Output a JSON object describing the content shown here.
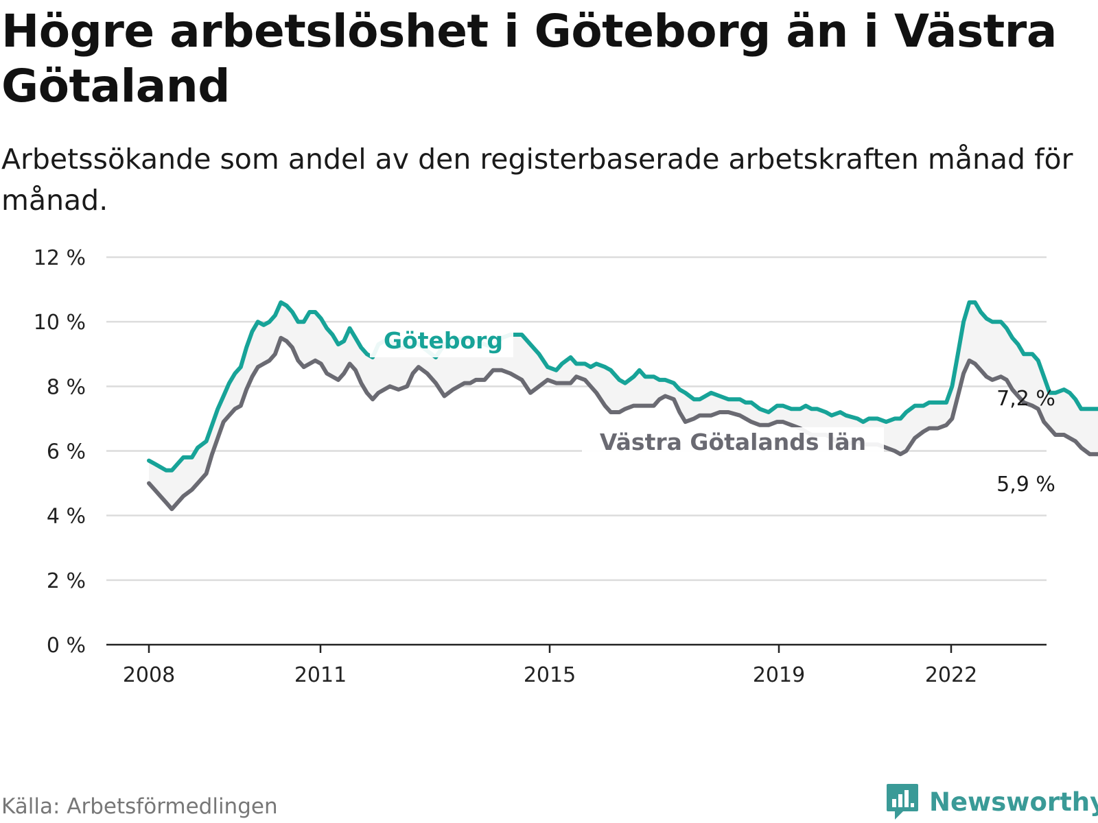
{
  "header": {
    "title": "Högre arbetslöshet i Göteborg än i Västra Götaland",
    "subtitle": "Arbetssökande som andel av den registerbaserade arbetskraften månad för månad."
  },
  "footer": {
    "source": "Källa: Arbetsförmedlingen",
    "brand": "Newsworthy"
  },
  "colors": {
    "goteborg": "#17a398",
    "vastra": "#6a6a72",
    "band": "#f4f4f4",
    "grid": "#dcdcdc",
    "brand": "#3a9a97"
  },
  "chart_data": {
    "type": "line",
    "title": "Högre arbetslöshet i Göteborg än i Västra Götaland",
    "subtitle": "Arbetssökande som andel av den registerbaserade arbetskraften månad för månad.",
    "xlabel": "",
    "ylabel": "",
    "ylim": [
      0,
      12
    ],
    "yticks": [
      0,
      2,
      4,
      6,
      8,
      10,
      12
    ],
    "ytick_labels": [
      "0 %",
      "2 %",
      "4 %",
      "6 %",
      "8 %",
      "10 %",
      "12 %"
    ],
    "xlim": [
      2008.0,
      2023.75
    ],
    "xticks": [
      2008,
      2011,
      2015,
      2019,
      2022
    ],
    "xtick_labels": [
      "2008",
      "2011",
      "2015",
      "2019",
      "2022"
    ],
    "grid": true,
    "series": [
      {
        "name": "Göteborg",
        "label": "Göteborg",
        "end_label": "7,2 %",
        "points": [
          [
            2008.0,
            5.7
          ],
          [
            2008.1,
            5.6
          ],
          [
            2008.2,
            5.5
          ],
          [
            2008.3,
            5.4
          ],
          [
            2008.4,
            5.4
          ],
          [
            2008.5,
            5.6
          ],
          [
            2008.6,
            5.8
          ],
          [
            2008.75,
            5.8
          ],
          [
            2008.85,
            6.1
          ],
          [
            2009.0,
            6.3
          ],
          [
            2009.1,
            6.8
          ],
          [
            2009.2,
            7.3
          ],
          [
            2009.3,
            7.7
          ],
          [
            2009.4,
            8.1
          ],
          [
            2009.5,
            8.4
          ],
          [
            2009.6,
            8.6
          ],
          [
            2009.7,
            9.2
          ],
          [
            2009.8,
            9.7
          ],
          [
            2009.9,
            10.0
          ],
          [
            2010.0,
            9.9
          ],
          [
            2010.1,
            10.0
          ],
          [
            2010.2,
            10.2
          ],
          [
            2010.3,
            10.6
          ],
          [
            2010.4,
            10.5
          ],
          [
            2010.5,
            10.3
          ],
          [
            2010.6,
            10.0
          ],
          [
            2010.7,
            10.0
          ],
          [
            2010.8,
            10.3
          ],
          [
            2010.9,
            10.3
          ],
          [
            2011.0,
            10.1
          ],
          [
            2011.1,
            9.8
          ],
          [
            2011.2,
            9.6
          ],
          [
            2011.3,
            9.3
          ],
          [
            2011.4,
            9.4
          ],
          [
            2011.5,
            9.8
          ],
          [
            2011.6,
            9.5
          ],
          [
            2011.7,
            9.2
          ],
          [
            2011.8,
            9.0
          ],
          [
            2011.9,
            8.9
          ],
          [
            2012.0,
            9.3
          ],
          [
            2012.1,
            9.4
          ],
          [
            2012.2,
            9.4
          ],
          [
            2012.35,
            9.2
          ],
          [
            2012.5,
            9.2
          ],
          [
            2012.6,
            9.4
          ],
          [
            2012.7,
            9.3
          ],
          [
            2012.85,
            9.1
          ],
          [
            2013.0,
            8.9
          ],
          [
            2013.15,
            9.3
          ],
          [
            2013.3,
            9.4
          ],
          [
            2013.5,
            9.5
          ],
          [
            2013.6,
            9.4
          ],
          [
            2013.7,
            9.4
          ],
          [
            2013.85,
            9.3
          ],
          [
            2014.0,
            9.2
          ],
          [
            2014.15,
            9.5
          ],
          [
            2014.3,
            9.6
          ],
          [
            2014.5,
            9.6
          ],
          [
            2014.65,
            9.3
          ],
          [
            2014.8,
            9.0
          ],
          [
            2014.95,
            8.6
          ],
          [
            2015.1,
            8.5
          ],
          [
            2015.2,
            8.7
          ],
          [
            2015.35,
            8.9
          ],
          [
            2015.45,
            8.7
          ],
          [
            2015.6,
            8.7
          ],
          [
            2015.7,
            8.6
          ],
          [
            2015.8,
            8.7
          ],
          [
            2015.95,
            8.6
          ],
          [
            2016.05,
            8.5
          ],
          [
            2016.2,
            8.2
          ],
          [
            2016.3,
            8.1
          ],
          [
            2016.45,
            8.3
          ],
          [
            2016.55,
            8.5
          ],
          [
            2016.65,
            8.3
          ],
          [
            2016.8,
            8.3
          ],
          [
            2016.9,
            8.2
          ],
          [
            2017.0,
            8.2
          ],
          [
            2017.15,
            8.1
          ],
          [
            2017.25,
            7.9
          ],
          [
            2017.35,
            7.8
          ],
          [
            2017.5,
            7.6
          ],
          [
            2017.6,
            7.6
          ],
          [
            2017.8,
            7.8
          ],
          [
            2017.95,
            7.7
          ],
          [
            2018.1,
            7.6
          ],
          [
            2018.3,
            7.6
          ],
          [
            2018.4,
            7.5
          ],
          [
            2018.5,
            7.5
          ],
          [
            2018.65,
            7.3
          ],
          [
            2018.8,
            7.2
          ],
          [
            2018.95,
            7.4
          ],
          [
            2019.05,
            7.4
          ],
          [
            2019.2,
            7.3
          ],
          [
            2019.35,
            7.3
          ],
          [
            2019.45,
            7.4
          ],
          [
            2019.55,
            7.3
          ],
          [
            2019.65,
            7.3
          ],
          [
            2019.8,
            7.2
          ],
          [
            2019.9,
            7.1
          ],
          [
            2020.05,
            7.2
          ],
          [
            2020.15,
            7.1
          ],
          [
            2020.35,
            7.0
          ],
          [
            2020.45,
            6.9
          ],
          [
            2020.55,
            7.0
          ],
          [
            2020.7,
            7.0
          ],
          [
            2020.85,
            6.9
          ],
          [
            2021.0,
            7.0
          ],
          [
            2021.1,
            7.0
          ],
          [
            2021.2,
            7.2
          ],
          [
            2021.35,
            7.4
          ],
          [
            2021.5,
            7.4
          ],
          [
            2021.6,
            7.5
          ],
          [
            2021.75,
            7.5
          ],
          [
            2021.9,
            7.5
          ],
          [
            2022.0,
            8.0
          ],
          [
            2022.1,
            9.0
          ],
          [
            2022.2,
            10.0
          ],
          [
            2022.3,
            10.6
          ],
          [
            2022.4,
            10.6
          ],
          [
            2022.5,
            10.3
          ],
          [
            2022.6,
            10.1
          ],
          [
            2022.7,
            10.0
          ],
          [
            2022.85,
            10.0
          ],
          [
            2022.95,
            9.8
          ],
          [
            2023.05,
            9.5
          ],
          [
            2023.15,
            9.3
          ],
          [
            2023.25,
            9.0
          ],
          [
            2023.4,
            9.0
          ],
          [
            2023.5,
            8.8
          ],
          [
            2023.6,
            8.3
          ],
          [
            2023.7,
            7.8
          ],
          [
            2023.8,
            7.8
          ],
          [
            2023.95,
            7.9
          ],
          [
            2024.05,
            7.8
          ],
          [
            2024.15,
            7.6
          ],
          [
            2024.25,
            7.3
          ],
          [
            2024.4,
            7.3
          ],
          [
            2024.55,
            7.3
          ],
          [
            2024.65,
            7.3
          ],
          [
            2024.75,
            7.2
          ],
          [
            2024.85,
            7.2
          ]
        ]
      },
      {
        "name": "Västra Götalands län",
        "label": "Västra Götalands län",
        "end_label": "5,9 %",
        "points": [
          [
            2008.0,
            5.0
          ],
          [
            2008.1,
            4.8
          ],
          [
            2008.2,
            4.6
          ],
          [
            2008.3,
            4.4
          ],
          [
            2008.4,
            4.2
          ],
          [
            2008.5,
            4.4
          ],
          [
            2008.6,
            4.6
          ],
          [
            2008.75,
            4.8
          ],
          [
            2008.85,
            5.0
          ],
          [
            2009.0,
            5.3
          ],
          [
            2009.1,
            5.9
          ],
          [
            2009.2,
            6.4
          ],
          [
            2009.3,
            6.9
          ],
          [
            2009.4,
            7.1
          ],
          [
            2009.5,
            7.3
          ],
          [
            2009.6,
            7.4
          ],
          [
            2009.7,
            7.9
          ],
          [
            2009.8,
            8.3
          ],
          [
            2009.9,
            8.6
          ],
          [
            2010.0,
            8.7
          ],
          [
            2010.1,
            8.8
          ],
          [
            2010.2,
            9.0
          ],
          [
            2010.3,
            9.5
          ],
          [
            2010.4,
            9.4
          ],
          [
            2010.5,
            9.2
          ],
          [
            2010.6,
            8.8
          ],
          [
            2010.7,
            8.6
          ],
          [
            2010.8,
            8.7
          ],
          [
            2010.9,
            8.8
          ],
          [
            2011.0,
            8.7
          ],
          [
            2011.1,
            8.4
          ],
          [
            2011.2,
            8.3
          ],
          [
            2011.3,
            8.2
          ],
          [
            2011.4,
            8.4
          ],
          [
            2011.5,
            8.7
          ],
          [
            2011.6,
            8.5
          ],
          [
            2011.7,
            8.1
          ],
          [
            2011.8,
            7.8
          ],
          [
            2011.9,
            7.6
          ],
          [
            2012.0,
            7.8
          ],
          [
            2012.1,
            7.9
          ],
          [
            2012.2,
            8.0
          ],
          [
            2012.35,
            7.9
          ],
          [
            2012.5,
            8.0
          ],
          [
            2012.6,
            8.4
          ],
          [
            2012.7,
            8.6
          ],
          [
            2012.85,
            8.4
          ],
          [
            2013.0,
            8.1
          ],
          [
            2013.15,
            7.7
          ],
          [
            2013.3,
            7.9
          ],
          [
            2013.5,
            8.1
          ],
          [
            2013.6,
            8.1
          ],
          [
            2013.7,
            8.2
          ],
          [
            2013.85,
            8.2
          ],
          [
            2014.0,
            8.5
          ],
          [
            2014.15,
            8.5
          ],
          [
            2014.3,
            8.4
          ],
          [
            2014.5,
            8.2
          ],
          [
            2014.65,
            7.8
          ],
          [
            2014.8,
            8.0
          ],
          [
            2014.95,
            8.2
          ],
          [
            2015.1,
            8.1
          ],
          [
            2015.2,
            8.1
          ],
          [
            2015.35,
            8.1
          ],
          [
            2015.45,
            8.3
          ],
          [
            2015.6,
            8.2
          ],
          [
            2015.7,
            8.0
          ],
          [
            2015.8,
            7.8
          ],
          [
            2015.95,
            7.4
          ],
          [
            2016.05,
            7.2
          ],
          [
            2016.2,
            7.2
          ],
          [
            2016.3,
            7.3
          ],
          [
            2016.45,
            7.4
          ],
          [
            2016.55,
            7.4
          ],
          [
            2016.65,
            7.4
          ],
          [
            2016.8,
            7.4
          ],
          [
            2016.9,
            7.6
          ],
          [
            2017.0,
            7.7
          ],
          [
            2017.15,
            7.6
          ],
          [
            2017.25,
            7.2
          ],
          [
            2017.35,
            6.9
          ],
          [
            2017.5,
            7.0
          ],
          [
            2017.6,
            7.1
          ],
          [
            2017.8,
            7.1
          ],
          [
            2017.95,
            7.2
          ],
          [
            2018.1,
            7.2
          ],
          [
            2018.3,
            7.1
          ],
          [
            2018.4,
            7.0
          ],
          [
            2018.5,
            6.9
          ],
          [
            2018.65,
            6.8
          ],
          [
            2018.8,
            6.8
          ],
          [
            2018.95,
            6.9
          ],
          [
            2019.05,
            6.9
          ],
          [
            2019.2,
            6.8
          ],
          [
            2019.35,
            6.7
          ],
          [
            2019.45,
            6.6
          ],
          [
            2019.55,
            6.5
          ],
          [
            2019.65,
            6.5
          ],
          [
            2019.8,
            6.5
          ],
          [
            2019.9,
            6.4
          ],
          [
            2020.05,
            6.2
          ],
          [
            2020.15,
            6.2
          ],
          [
            2020.35,
            6.3
          ],
          [
            2020.45,
            6.2
          ],
          [
            2020.55,
            6.2
          ],
          [
            2020.7,
            6.2
          ],
          [
            2020.85,
            6.1
          ],
          [
            2021.0,
            6.0
          ],
          [
            2021.1,
            5.9
          ],
          [
            2021.2,
            6.0
          ],
          [
            2021.35,
            6.4
          ],
          [
            2021.5,
            6.6
          ],
          [
            2021.6,
            6.7
          ],
          [
            2021.75,
            6.7
          ],
          [
            2021.9,
            6.8
          ],
          [
            2022.0,
            7.0
          ],
          [
            2022.1,
            7.7
          ],
          [
            2022.2,
            8.4
          ],
          [
            2022.3,
            8.8
          ],
          [
            2022.4,
            8.7
          ],
          [
            2022.5,
            8.5
          ],
          [
            2022.6,
            8.3
          ],
          [
            2022.7,
            8.2
          ],
          [
            2022.85,
            8.3
          ],
          [
            2022.95,
            8.2
          ],
          [
            2023.05,
            7.9
          ],
          [
            2023.15,
            7.7
          ],
          [
            2023.25,
            7.5
          ],
          [
            2023.4,
            7.4
          ],
          [
            2023.5,
            7.3
          ],
          [
            2023.6,
            6.9
          ],
          [
            2023.7,
            6.7
          ],
          [
            2023.8,
            6.5
          ],
          [
            2023.95,
            6.5
          ],
          [
            2024.05,
            6.4
          ],
          [
            2024.15,
            6.3
          ],
          [
            2024.25,
            6.1
          ],
          [
            2024.4,
            5.9
          ],
          [
            2024.55,
            5.9
          ],
          [
            2024.65,
            5.9
          ],
          [
            2024.75,
            5.9
          ],
          [
            2024.85,
            5.9
          ]
        ]
      }
    ]
  }
}
